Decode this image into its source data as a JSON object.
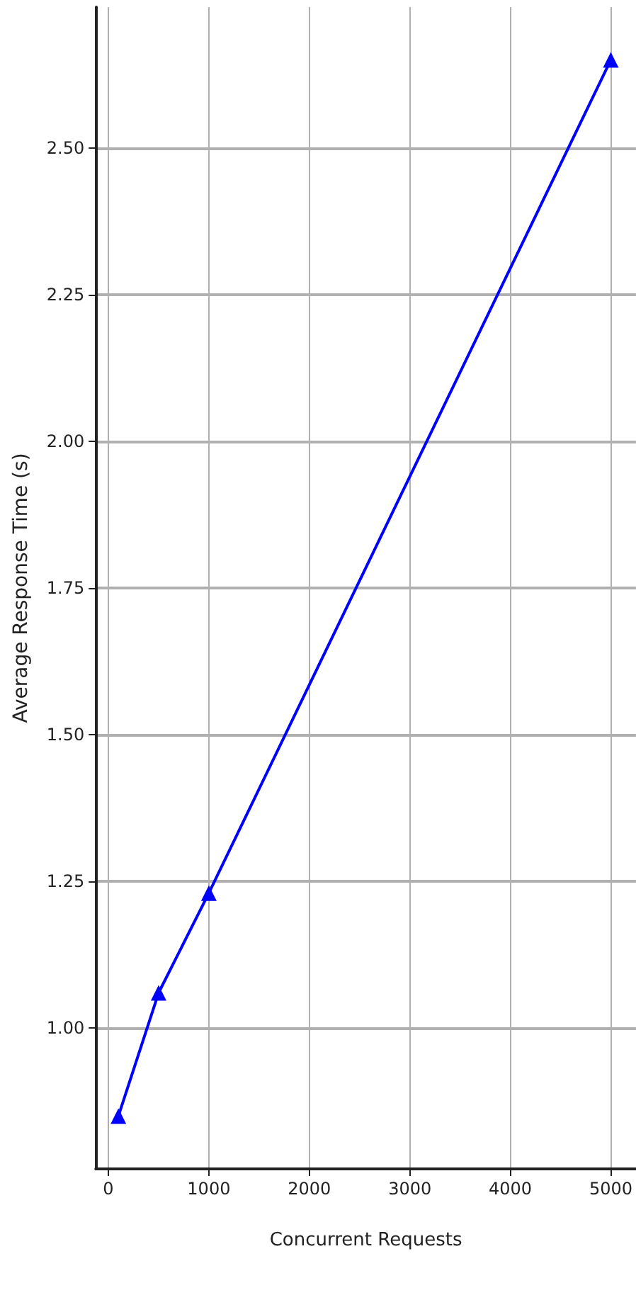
{
  "chart_data": {
    "type": "line",
    "xlabel": "Concurrent Requests",
    "ylabel": "Average Response Time (s)",
    "x": [
      100,
      500,
      1000,
      5000
    ],
    "series": [
      {
        "color": "#0000ff",
        "values": [
          0.85,
          1.06,
          1.23,
          2.65
        ]
      }
    ],
    "xlim": [
      -125,
      5250
    ],
    "ylim": [
      0.76,
      2.74
    ],
    "xticks": [
      0,
      1000,
      2000,
      3000,
      4000,
      5000
    ],
    "yticks": [
      {
        "value": 1,
        "label": "1.00"
      },
      {
        "value": 1.25,
        "label": "1.25"
      },
      {
        "value": 1.5,
        "label": "1.50"
      },
      {
        "value": 1.75,
        "label": "1.75"
      },
      {
        "value": 2,
        "label": "2.00"
      },
      {
        "value": 2.25,
        "label": "2.25"
      },
      {
        "value": 2.5,
        "label": "2.50"
      }
    ],
    "grid": true,
    "marker": "triangle",
    "line_style": "solid"
  }
}
